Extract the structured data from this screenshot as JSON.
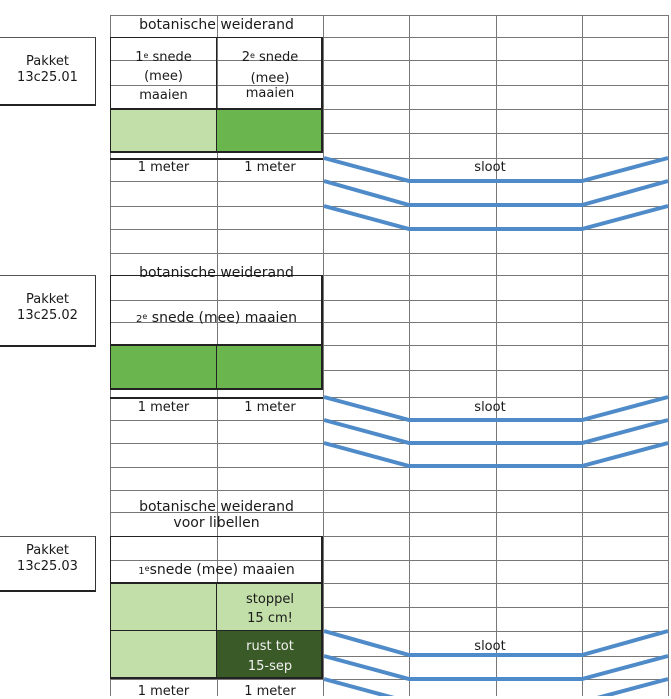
{
  "colors": {
    "light_green": "#c3dfa9",
    "mid_green": "#6ab54e",
    "dark_green": "#3a5a27",
    "ditch_blue": "#4f8bc9",
    "grid": "#777777"
  },
  "sections": [
    {
      "pakket_label": "Pakket",
      "pakket_code": "13c25.01",
      "title": "botanische weiderand",
      "cell_a": {
        "sup": "e",
        "lines": [
          "1",
          "snede",
          "(mee)",
          "maaien"
        ]
      },
      "cell_b": {
        "sup": "e",
        "lines": [
          "2",
          "snede",
          "(mee)",
          "maaien"
        ]
      },
      "width_a": "1 meter",
      "width_b": "1 meter",
      "ditch_label": "sloot"
    },
    {
      "pakket_label": "Pakket",
      "pakket_code": "13c25.02",
      "title": "botanische weiderand",
      "cell": {
        "number": "2",
        "sup": "e",
        "text": "snede (mee) maaien"
      },
      "width_a": "1 meter",
      "width_b": "1 meter",
      "ditch_label": "sloot"
    },
    {
      "pakket_label": "Pakket",
      "pakket_code": "13c25.03",
      "title_line1": "botanische weiderand",
      "title_line2": "voor libellen",
      "cell": {
        "number": "1",
        "sup": "e",
        "text": "snede (mee) maaien"
      },
      "stoppel_line1": "stoppel",
      "stoppel_line2": "15 cm!",
      "rust_line1": "rust tot",
      "rust_line2": "15-sep",
      "ditch_label": "sloot",
      "width_a": "1 meter",
      "width_b": "1 meter"
    }
  ]
}
